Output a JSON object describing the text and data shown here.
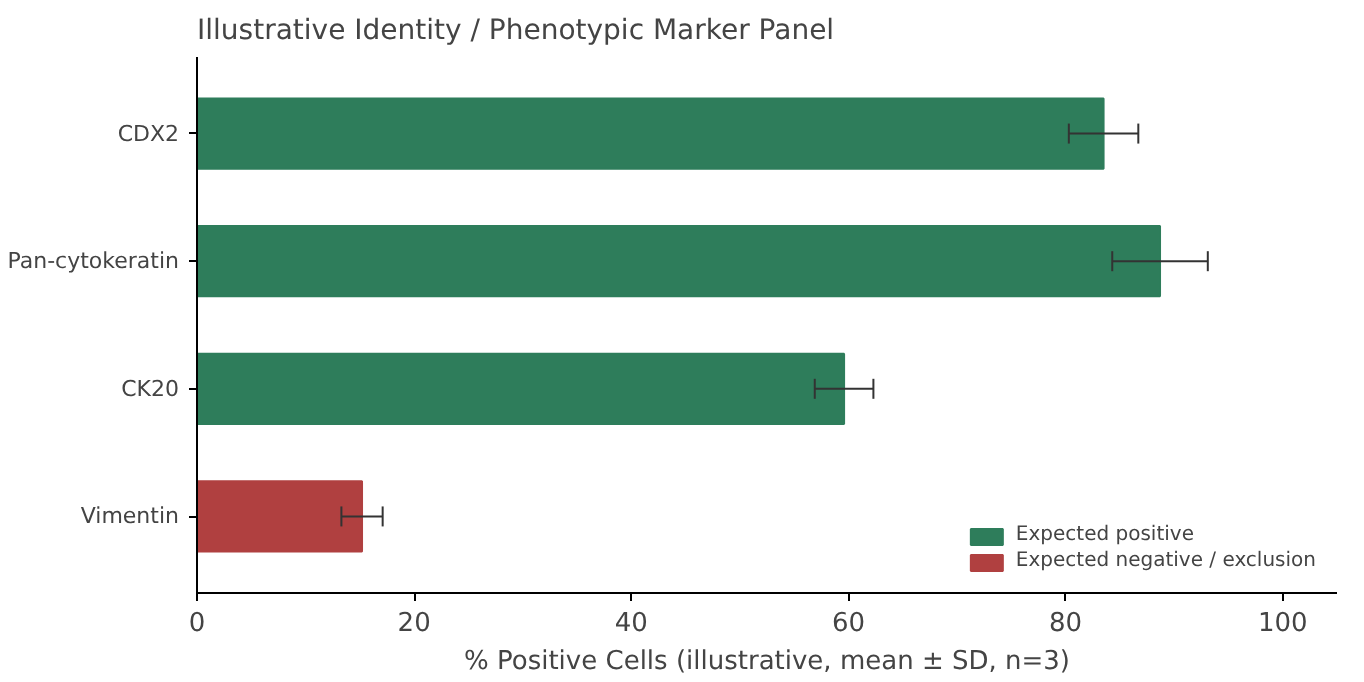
{
  "chart_data": {
    "type": "bar",
    "orientation": "horizontal",
    "title": "Illustrative Identity / Phenotypic Marker Panel",
    "xlabel": "% Positive Cells (illustrative, mean ± SD, n=3)",
    "categories": [
      "CDX2",
      "Pan-cytokeratin",
      "CK20",
      "Vimentin"
    ],
    "series": [
      {
        "name": "Expected positive",
        "color": "#2e7d5b",
        "values": [
          83.5,
          88.7,
          59.6,
          null
        ],
        "errors": [
          3.2,
          4.4,
          2.7,
          null
        ]
      },
      {
        "name": "Expected negative / exclusion",
        "color": "#b04040",
        "values": [
          null,
          null,
          null,
          15.2
        ],
        "errors": [
          null,
          null,
          null,
          1.9
        ]
      }
    ],
    "xlim": [
      0,
      105
    ],
    "xticks": [
      0,
      20,
      40,
      60,
      80,
      100
    ],
    "grid": false,
    "legend": "bottom right"
  }
}
